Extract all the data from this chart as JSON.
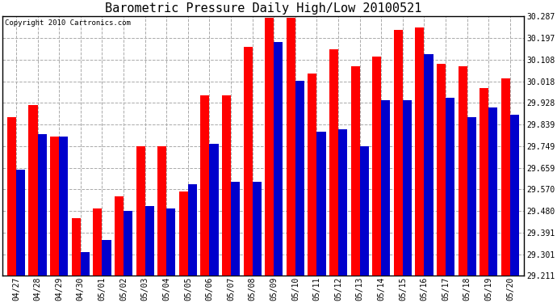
{
  "title": "Barometric Pressure Daily High/Low 20100521",
  "copyright": "Copyright 2010 Cartronics.com",
  "dates": [
    "04/27",
    "04/28",
    "04/29",
    "04/30",
    "05/01",
    "05/02",
    "05/03",
    "05/04",
    "05/05",
    "05/06",
    "05/07",
    "05/08",
    "05/09",
    "05/10",
    "05/11",
    "05/12",
    "05/13",
    "05/14",
    "05/15",
    "05/16",
    "05/17",
    "05/18",
    "05/19",
    "05/20"
  ],
  "highs": [
    29.87,
    29.92,
    29.79,
    29.45,
    29.49,
    29.54,
    29.75,
    29.75,
    29.56,
    29.96,
    29.96,
    30.16,
    30.28,
    30.28,
    30.05,
    30.15,
    30.08,
    30.12,
    30.23,
    30.24,
    30.09,
    30.08,
    29.99,
    30.03
  ],
  "lows": [
    29.65,
    29.8,
    29.79,
    29.31,
    29.36,
    29.48,
    29.5,
    29.49,
    29.59,
    29.76,
    29.6,
    29.6,
    30.18,
    30.02,
    29.81,
    29.82,
    29.75,
    29.94,
    29.94,
    30.13,
    29.95,
    29.87,
    29.91,
    29.88
  ],
  "ylim_min": 29.211,
  "ylim_max": 30.287,
  "yticks": [
    29.211,
    29.301,
    29.391,
    29.48,
    29.57,
    29.659,
    29.749,
    29.839,
    29.928,
    30.018,
    30.108,
    30.197,
    30.287
  ],
  "high_color": "#ff0000",
  "low_color": "#0000cc",
  "bg_color": "#ffffff",
  "plot_bg_color": "#ffffff",
  "grid_color": "#aaaaaa",
  "bar_width": 0.42,
  "title_fontsize": 11,
  "copyright_fontsize": 6.5,
  "tick_fontsize": 7
}
